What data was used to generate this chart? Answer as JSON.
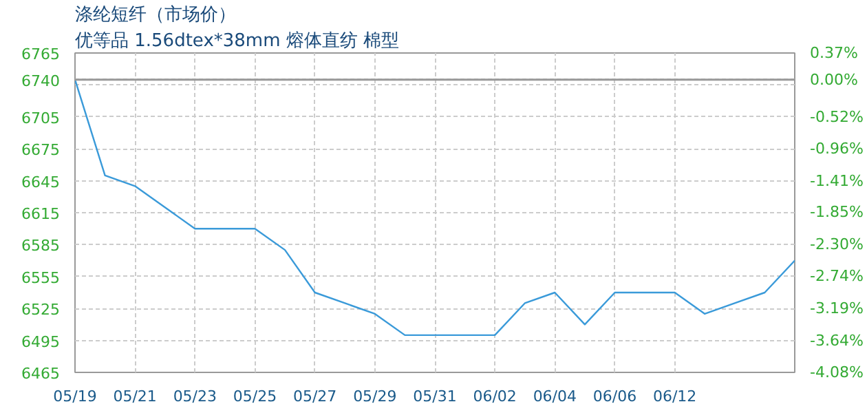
{
  "chart_data": {
    "type": "line",
    "title": "涤纶短纤（市场价）",
    "subtitle": "优等品 1.56dtex*38mm 熔体直纺 棉型",
    "categories": [
      "05/19",
      null,
      "05/21",
      null,
      "05/23",
      null,
      "05/25",
      null,
      "05/27",
      null,
      "05/29",
      null,
      "05/31",
      null,
      "06/02",
      null,
      "06/04",
      null,
      "06/06",
      null,
      "06/12",
      null,
      null,
      null,
      null
    ],
    "series": [
      {
        "color": "#3a9ad9",
        "values": [
          6740,
          6650,
          6640,
          6620,
          6600,
          6600,
          6600,
          6580,
          6540,
          6530,
          6520,
          6500,
          6500,
          6500,
          6500,
          6530,
          6540,
          6510,
          6540,
          6540,
          6540,
          6520,
          6530,
          6540,
          6570
        ]
      }
    ],
    "ylim": [
      6465,
      6765
    ],
    "yticks": [
      6465,
      6495,
      6525,
      6555,
      6585,
      6615,
      6645,
      6675,
      6705,
      {
        "value": 6735,
        "label": null
      },
      6740,
      6765
    ],
    "y2lim": [
      -4.08,
      0.37
    ],
    "y2ticks": [
      {
        "value": -4.08,
        "label": "-4.08%"
      },
      {
        "value": -3.64,
        "label": "-3.64%"
      },
      {
        "value": -3.19,
        "label": "-3.19%"
      },
      {
        "value": -2.74,
        "label": "-2.74%"
      },
      {
        "value": -2.3,
        "label": "-2.30%"
      },
      {
        "value": -1.85,
        "label": "-1.85%"
      },
      {
        "value": -1.41,
        "label": "-1.41%"
      },
      {
        "value": -0.96,
        "label": "-0.96%"
      },
      {
        "value": -0.52,
        "label": "-0.52%"
      },
      {
        "value": 0,
        "label": "0.00%"
      },
      {
        "value": 0.37,
        "label": "0.37%"
      }
    ],
    "ref_lines": [
      {
        "axis": "y",
        "value": 6740,
        "color": "#999999"
      }
    ],
    "grid": true,
    "marker": "none",
    "line_style": "solid"
  }
}
